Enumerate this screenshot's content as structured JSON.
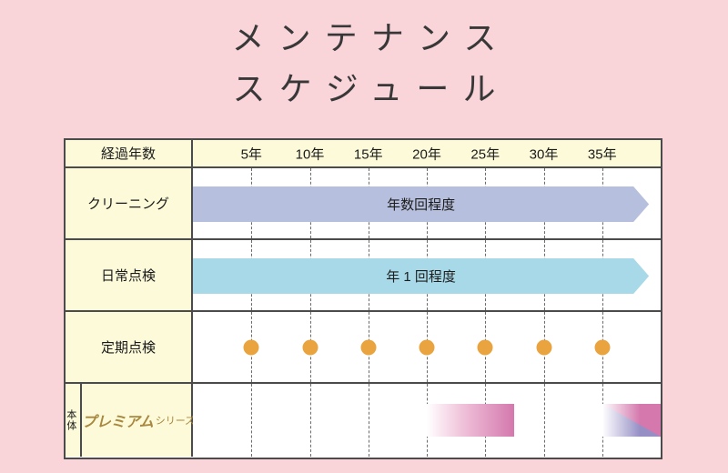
{
  "title": {
    "line1": "メンテナンス",
    "line2": "スケジュール"
  },
  "table": {
    "corner_label": "経過年数",
    "years": [
      "5年",
      "10年",
      "15年",
      "20年",
      "25年",
      "30年",
      "35年"
    ],
    "rows": {
      "cleaning": {
        "label": "クリーニング",
        "bar_text": "年数回程度"
      },
      "daily": {
        "label": "日常点検",
        "bar_text": "年 1 回程度"
      },
      "periodic": {
        "label": "定期点検",
        "dot_years": [
          "5年",
          "10年",
          "15年",
          "20年",
          "25年",
          "30年",
          "35年"
        ]
      },
      "body": {
        "label": "本体",
        "series_name": "プレミアム",
        "series_suffix": "シリーズ"
      }
    },
    "gradient_bars": [
      {
        "name": "premium-replacement-window-1",
        "start": "20年",
        "end": "約27年"
      },
      {
        "name": "premium-replacement-window-2",
        "start": "35年",
        "end": "表右端"
      }
    ]
  },
  "colors": {
    "background": "#f9d5da",
    "header_yellow": "#fcfad9",
    "cleaning_bar": "#b6bfdd",
    "daily_bar": "#a8d9e8",
    "dot_orange": "#e9a440",
    "gradient_pink": "#d478ad",
    "gradient_purple": "#958fc5",
    "premium_gold": "#a8873f",
    "border": "#4b4b4b"
  }
}
